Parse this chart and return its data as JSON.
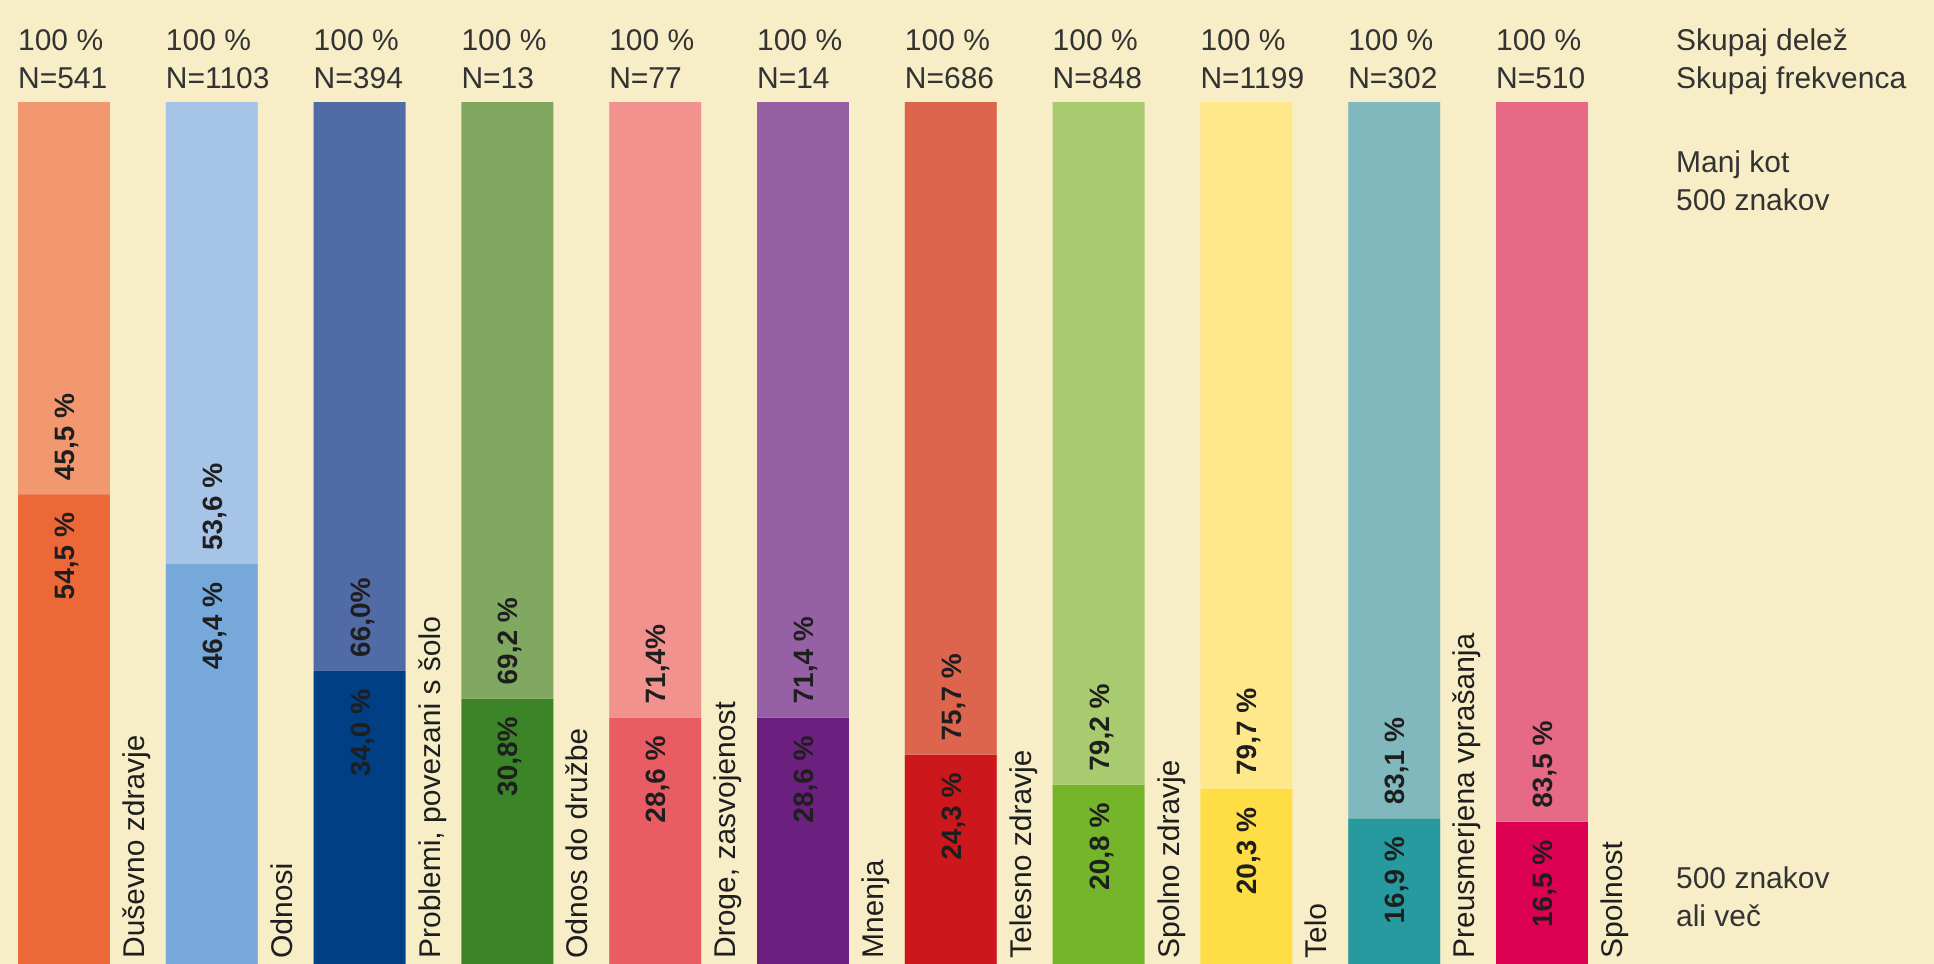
{
  "chart_data": {
    "type": "bar",
    "stacked": true,
    "legend": "right",
    "categories": [
      "Duševno zdravje",
      "Odnosi",
      "Problemi, povezani s šolo",
      "Odnos do družbe",
      "Droge, zasvojenost",
      "Mnenja",
      "Telesno zdravje",
      "Spolno zdravje",
      "Telo",
      "Preusmerjena vprašanja",
      "Spolnost"
    ],
    "series": [
      {
        "name": "500 znakov ali več",
        "values": [
          54.5,
          46.4,
          34.0,
          30.8,
          28.6,
          28.6,
          24.3,
          20.8,
          20.3,
          16.9,
          16.5
        ],
        "value_labels": [
          "54,5 %",
          "46,4 %",
          "34,0 %",
          "30,8%",
          "28,6 %",
          "28,6 %",
          "24,3 %",
          "20,8 %",
          "20,3 %",
          "16,9 %",
          "16,5 %"
        ],
        "colors": [
          "#ec6839",
          "#76a9da",
          "#003f84",
          "#3b8427",
          "#e95c64",
          "#6b1f7f",
          "#cc171d",
          "#75b52b",
          "#ffdd45",
          "#279aa0",
          "#dc0052"
        ]
      },
      {
        "name": "Manj kot 500 znakov",
        "values": [
          45.5,
          53.6,
          66.0,
          69.2,
          71.4,
          71.4,
          75.7,
          79.2,
          79.7,
          83.1,
          83.5
        ],
        "value_labels": [
          "45,5 %",
          "53,6 %",
          "66,0%",
          "69,2 %",
          "71,4%",
          "71,4 %",
          "75,7 %",
          "79,2 %",
          "79,7 %",
          "83,1 %",
          "83,5 %"
        ],
        "colors": [
          "#f29870",
          "#a6c4e8",
          "#516ba6",
          "#80a860",
          "#f2928f",
          "#9660a4",
          "#de654d",
          "#a9cb6f",
          "#fee88a",
          "#80b8bd",
          "#e66a86"
        ]
      }
    ],
    "totals": [
      "100 %",
      "100 %",
      "100 %",
      "100 %",
      "100 %",
      "100 %",
      "100 %",
      "100 %",
      "100 %",
      "100 %",
      "100 %"
    ],
    "annotations": [
      "Skupaj delež",
      "Skupaj frekvenca",
      "N=541",
      "N=1103",
      "N=394",
      "N=13",
      "N=77",
      "N=14",
      "N=686",
      "N=848",
      "N=1199",
      "N=302",
      "N=510"
    ]
  }
}
